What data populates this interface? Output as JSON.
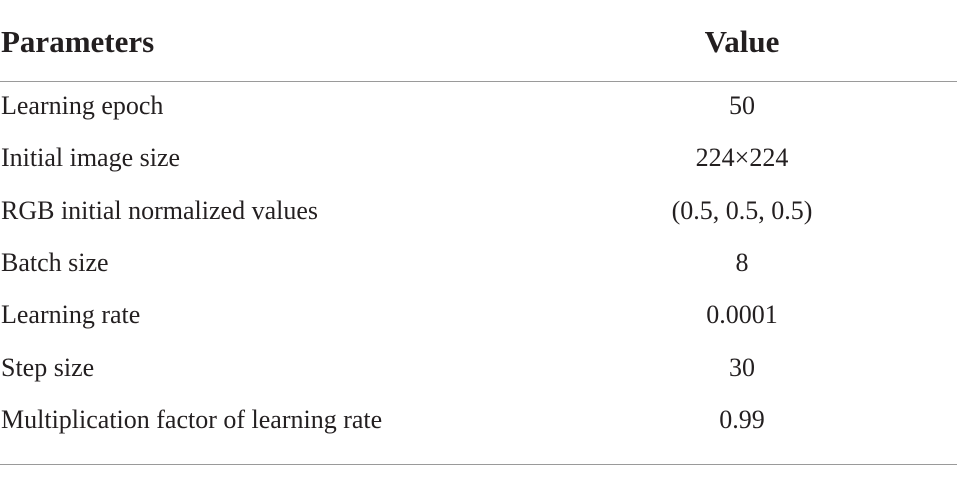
{
  "table": {
    "header": [
      "Parameters",
      "Value"
    ],
    "rows": [
      [
        "Learning epoch",
        "50"
      ],
      [
        "Initial image size",
        "224×224"
      ],
      [
        "RGB initial normalized values",
        "(0.5, 0.5, 0.5)"
      ],
      [
        "Batch size",
        "8"
      ],
      [
        "Learning rate",
        "0.0001"
      ],
      [
        "Step size",
        "30"
      ],
      [
        "Multiplication factor of learning rate",
        "0.99"
      ]
    ]
  }
}
